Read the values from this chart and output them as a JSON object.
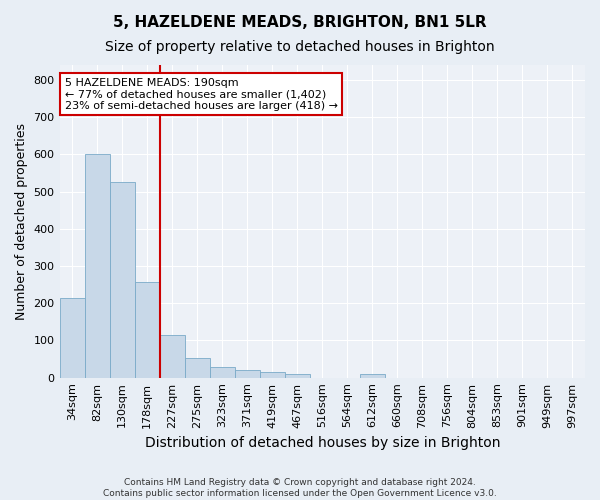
{
  "title": "5, HAZELDENE MEADS, BRIGHTON, BN1 5LR",
  "subtitle": "Size of property relative to detached houses in Brighton",
  "xlabel": "Distribution of detached houses by size in Brighton",
  "ylabel": "Number of detached properties",
  "footnote1": "Contains HM Land Registry data © Crown copyright and database right 2024.",
  "footnote2": "Contains public sector information licensed under the Open Government Licence v3.0.",
  "bar_labels": [
    "34sqm",
    "82sqm",
    "130sqm",
    "178sqm",
    "227sqm",
    "275sqm",
    "323sqm",
    "371sqm",
    "419sqm",
    "467sqm",
    "516sqm",
    "564sqm",
    "612sqm",
    "660sqm",
    "708sqm",
    "756sqm",
    "804sqm",
    "853sqm",
    "901sqm",
    "949sqm",
    "997sqm"
  ],
  "bar_values": [
    215,
    600,
    525,
    257,
    115,
    52,
    30,
    20,
    15,
    10,
    0,
    0,
    10,
    0,
    0,
    0,
    0,
    0,
    0,
    0,
    0
  ],
  "bar_color": "#c8d8e8",
  "bar_edge_color": "#7aaac8",
  "property_line_label": "5 HAZELDENE MEADS: 190sqm",
  "annotation_line1": "← 77% of detached houses are smaller (1,402)",
  "annotation_line2": "23% of semi-detached houses are larger (418) →",
  "vline_color": "#cc0000",
  "annotation_box_edge_color": "#cc0000",
  "ylim": [
    0,
    840
  ],
  "yticks": [
    0,
    100,
    200,
    300,
    400,
    500,
    600,
    700,
    800
  ],
  "bg_color": "#e8eef5",
  "plot_bg_color": "#edf1f7",
  "grid_color": "#ffffff",
  "title_fontsize": 11,
  "subtitle_fontsize": 10,
  "xlabel_fontsize": 10,
  "ylabel_fontsize": 9,
  "tick_fontsize": 8,
  "annotation_fontsize": 8,
  "footnote_fontsize": 6.5,
  "vline_x_index": 3.5
}
